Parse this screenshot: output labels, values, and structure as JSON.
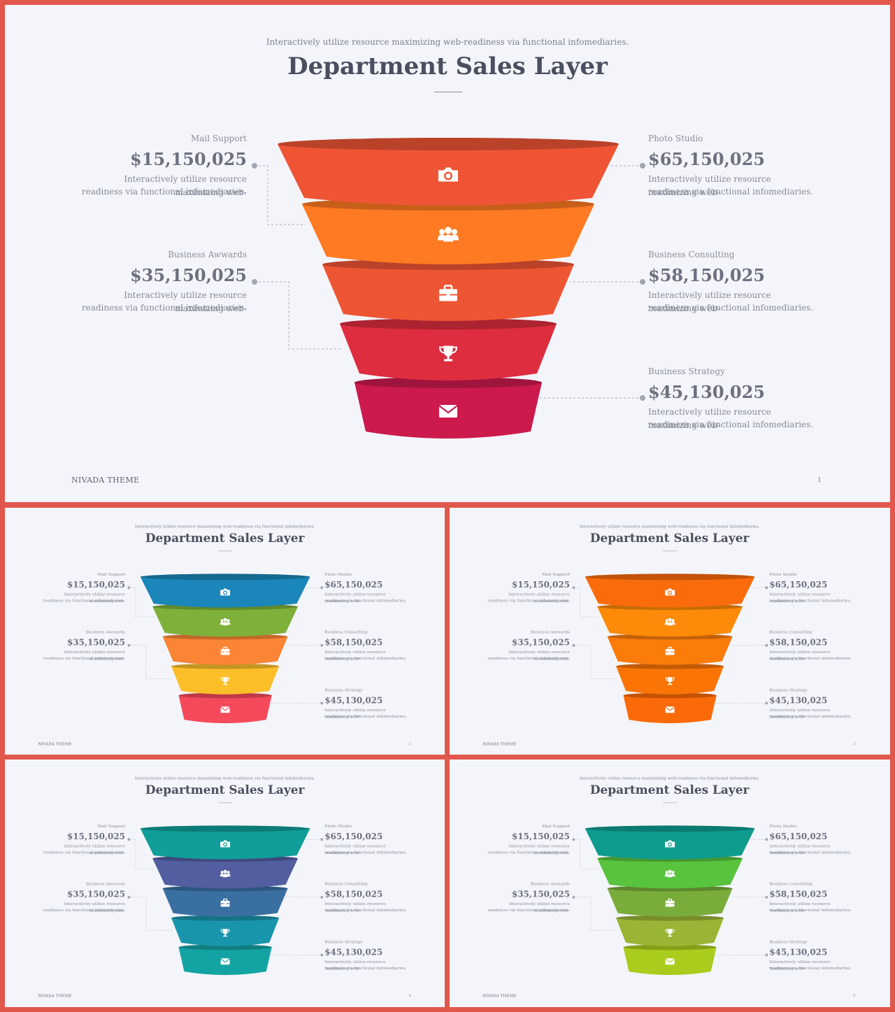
{
  "subtitle": "Interactively utilize resource maximizing web-readiness via functional infomediaries.",
  "title": "Department Sales Layer",
  "footer": "NIVADA THEME",
  "items": [
    {
      "label": "Mail Support",
      "value": "$15,150,025",
      "desc1": "Interactively utilize resource maximizing web-",
      "desc2": "readiness via functional infomediaries."
    },
    {
      "label": "Business Awwards",
      "value": "$35,150,025",
      "desc1": "Interactively utilize resource maximizing web-",
      "desc2": "readiness via functional infomediaries."
    },
    {
      "label": "Photo Studio",
      "value": "$65,150,025",
      "desc1": "Interactively utilize resource maximizing web-",
      "desc2": "readiness via functional infomediaries."
    },
    {
      "label": "Business Consulting",
      "value": "$58,150,025",
      "desc1": "Interactively utilize resource maximizing web-",
      "desc2": "readiness via functional infomediaries."
    },
    {
      "label": "Business Strategy",
      "value": "$45,130,025",
      "desc1": "Interactively utilize resource maximizing web-",
      "desc2": "readiness via functional infomediaries."
    }
  ],
  "layer_icons": [
    "camera-icon",
    "users-icon",
    "briefcase-icon",
    "trophy-icon",
    "envelope-icon"
  ],
  "slides": [
    {
      "page": "1",
      "colors": [
        "#ef5535",
        "#ff7a22",
        "#ee5533",
        "#dd2d3f",
        "#cc1a4d"
      ]
    },
    {
      "page": "2",
      "colors": [
        "#1a86b9",
        "#7fb03a",
        "#fa8534",
        "#fcbf2a",
        "#f54a5a"
      ]
    },
    {
      "page": "3",
      "colors": [
        "#fa6b0c",
        "#fd8a08",
        "#fb7b0b",
        "#fa7506",
        "#fb6a08"
      ]
    },
    {
      "page": "4",
      "colors": [
        "#0f9e99",
        "#525e9f",
        "#3a6fa2",
        "#1995ab",
        "#14a3a3"
      ]
    },
    {
      "page": "5",
      "colors": [
        "#0e9c8f",
        "#58c33d",
        "#79ac3a",
        "#9ab536",
        "#aacc1d"
      ]
    }
  ]
}
